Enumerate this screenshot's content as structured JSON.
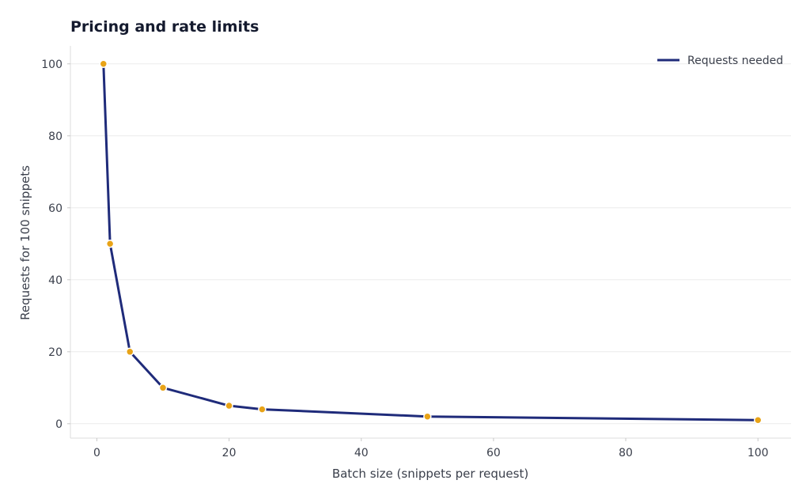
{
  "chart_data": {
    "type": "line",
    "title": "Pricing and rate limits",
    "xlabel": "Batch size (snippets per request)",
    "ylabel": "Requests for 100 snippets",
    "xlim": [
      -4,
      105
    ],
    "ylim": [
      -4,
      105
    ],
    "xticks": [
      0,
      20,
      40,
      60,
      80,
      100
    ],
    "yticks": [
      0,
      20,
      40,
      60,
      80,
      100
    ],
    "grid": true,
    "legend_position": "top-right",
    "x": [
      1,
      2,
      5,
      10,
      20,
      25,
      50,
      100
    ],
    "series": [
      {
        "name": "Requests needed",
        "values": [
          100,
          50,
          20,
          10,
          5,
          4,
          2,
          1
        ],
        "line_color": "#1f2b7a",
        "marker_color": "#e8a317"
      }
    ]
  }
}
